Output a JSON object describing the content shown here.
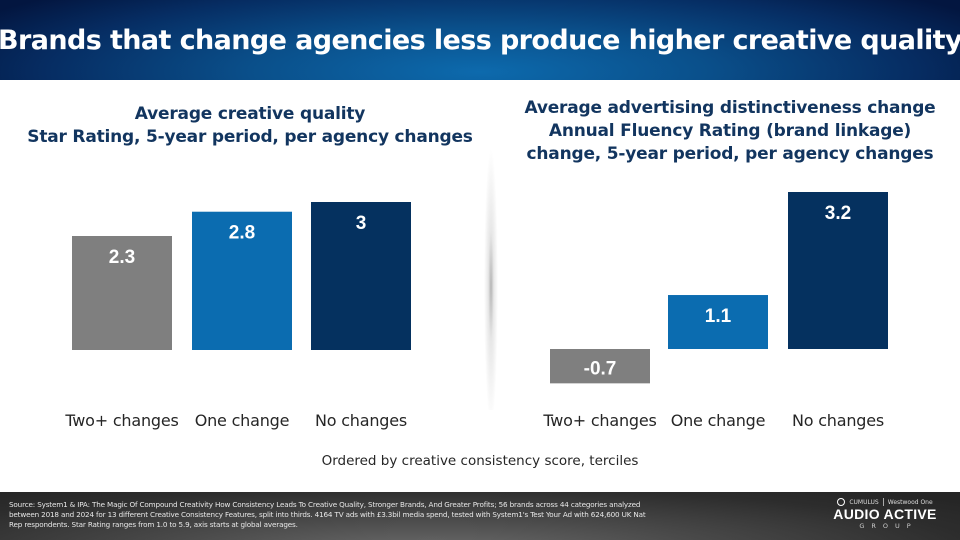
{
  "header": {
    "title": "Brands that change agencies less produce higher creative quality"
  },
  "chart_data": [
    {
      "type": "bar",
      "title_lines": [
        "Average creative quality",
        "Star Rating, 5-year period, per agency changes"
      ],
      "categories": [
        "Two+ changes",
        "One change",
        "No changes"
      ],
      "values": [
        2.3,
        2.8,
        3.0
      ],
      "value_labels": [
        "2.3",
        "2.8",
        "3"
      ],
      "colors": [
        "#7f7f7f",
        "#0b6cb0",
        "#05315f"
      ],
      "xlabel": "",
      "ylabel": "",
      "ylim": [
        1.0,
        3.0
      ],
      "grid": false
    },
    {
      "type": "bar",
      "title_lines": [
        "Average advertising distinctiveness change",
        "Annual Fluency Rating (brand linkage)",
        "change, 5-year period, per agency changes"
      ],
      "categories": [
        "Two+ changes",
        "One change",
        "No changes"
      ],
      "values": [
        -0.7,
        1.1,
        3.2
      ],
      "value_labels": [
        "-0.7",
        "1.1",
        "3.2"
      ],
      "colors": [
        "#7f7f7f",
        "#0b6cb0",
        "#05315f"
      ],
      "xlabel": "",
      "ylabel": "",
      "ylim": [
        -0.7,
        3.2
      ],
      "grid": false
    }
  ],
  "note": "Ordered by creative consistency score,  terciles",
  "footer": {
    "source": "Source: System1 & IPA: The Magic Of Compound Creativity How Consistency Leads To Creative Quality, Stronger Brands, And Greater Profits; 56 brands across 44 categories analyzed between 2018 and 2024  for 13 different Creative Consistency Features, split into thirds. 4164 TV ads with £3.3bil media spend, tested with System1's Test Your Ad with 624,600 UK Nat Rep respondents. Star Rating ranges from 1.0 to 5.9, axis starts at global averages.",
    "logo_partner_1": "CUMULUS",
    "logo_partner_2": "Westwood One",
    "logo_main": "AUDIO ACTIVE",
    "logo_sub": "GROUP"
  }
}
